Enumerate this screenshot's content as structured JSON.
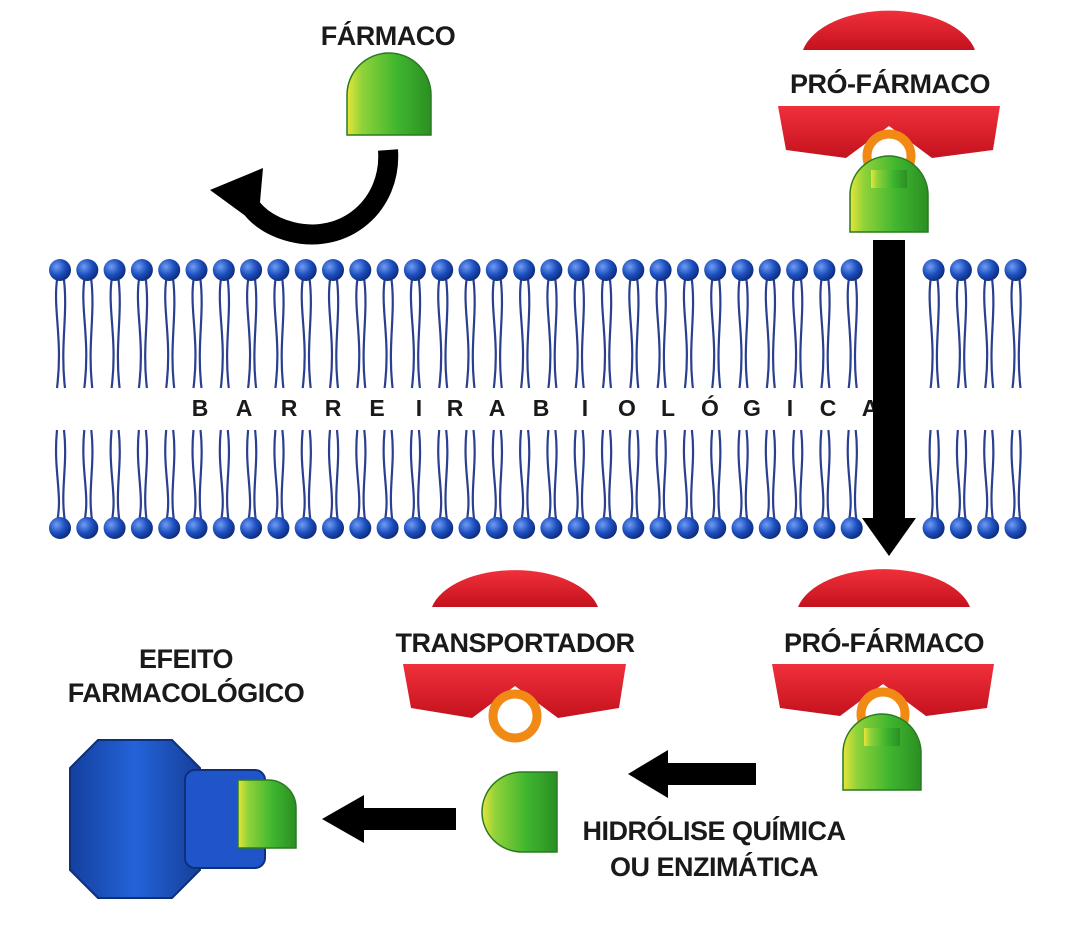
{
  "labels": {
    "farmaco": "FÁRMACO",
    "pro_farmaco_top": "PRÓ-FÁRMACO",
    "pro_farmaco_bottom": "PRÓ-FÁRMACO",
    "transportador": "TRANSPORTADOR",
    "efeito_line1": "EFEITO",
    "efeito_line2": "FARMACOLÓGICO",
    "hidrolise_line1": "HIDRÓLISE QUÍMICA",
    "hidrolise_line2": "OU ENZIMÁTICA"
  },
  "barrier_letters": [
    "B",
    "A",
    "R",
    "R",
    "E",
    "I",
    "R",
    "A",
    "B",
    "I",
    "O",
    "L",
    "Ó",
    "G",
    "I",
    "C",
    "A"
  ],
  "colors": {
    "membrane_blue": "#1d4fbf",
    "carrier_red": "#e01b2a",
    "drug_green": "#3fb52f",
    "linker_orange": "#f08a14",
    "receptor_blue": "#1f55c8",
    "arrow_black": "#000000"
  },
  "icons": {
    "farmaco": "drug-molecule-icon",
    "pro_farmaco": "prodrug-complex-icon",
    "transportador": "carrier-icon",
    "receptor": "receptor-icon"
  }
}
